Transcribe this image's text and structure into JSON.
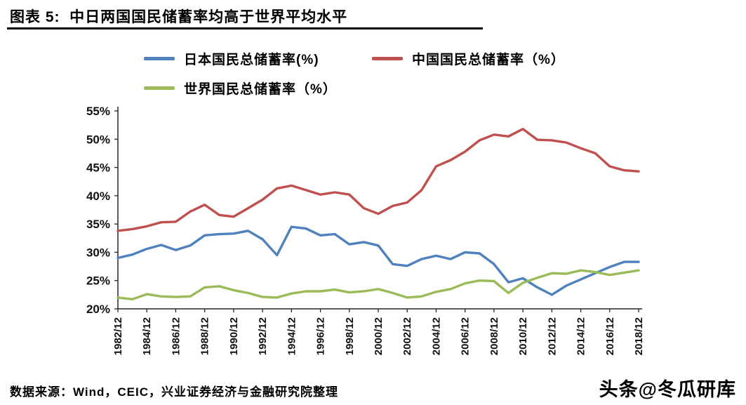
{
  "header": {
    "title": "图表 5:  中日两国国民储蓄率均高于世界平均水平"
  },
  "footer": {
    "source": "数据来源：Wind，CEIC，兴业证券经济与金融研究院整理",
    "watermark": "头条@冬瓜研库"
  },
  "chart_data": {
    "type": "line",
    "title": "中日两国国民储蓄率均高于世界平均水平",
    "legend_position": "top",
    "grid": false,
    "ylim": [
      20,
      55
    ],
    "y_tick_labels": [
      "20%",
      "25%",
      "30%",
      "35%",
      "40%",
      "45%",
      "50%",
      "55%"
    ],
    "x_tick_labels": [
      "1982/12",
      "1984/12",
      "1986/12",
      "1988/12",
      "1990/12",
      "1992/12",
      "1994/12",
      "1996/12",
      "1998/12",
      "2000/12",
      "2002/12",
      "2004/12",
      "2006/12",
      "2008/12",
      "2010/12",
      "2012/12",
      "2014/12",
      "2016/12",
      "2018/12"
    ],
    "years": [
      1982,
      1983,
      1984,
      1985,
      1986,
      1987,
      1988,
      1989,
      1990,
      1991,
      1992,
      1993,
      1994,
      1995,
      1996,
      1997,
      1998,
      1999,
      2000,
      2001,
      2002,
      2003,
      2004,
      2005,
      2006,
      2007,
      2008,
      2009,
      2010,
      2011,
      2012,
      2013,
      2014,
      2015,
      2016,
      2017,
      2018
    ],
    "series": [
      {
        "name": "日本国民总储蓄率(%)",
        "color": "#4F81BD",
        "values": [
          29.0,
          29.6,
          30.6,
          31.3,
          30.4,
          31.2,
          33.0,
          33.2,
          33.3,
          33.8,
          32.3,
          29.5,
          34.5,
          34.2,
          33.0,
          33.2,
          31.4,
          31.8,
          31.2,
          27.9,
          27.6,
          28.8,
          29.4,
          28.8,
          30.0,
          29.8,
          27.9,
          24.7,
          25.4,
          23.8,
          22.5,
          24.1,
          25.2,
          26.3,
          27.4,
          28.3,
          28.3
        ]
      },
      {
        "name": "中国国民总储蓄率（%）",
        "color": "#C0504D",
        "values": [
          33.8,
          34.1,
          34.6,
          35.3,
          35.4,
          37.2,
          38.4,
          36.6,
          36.3,
          37.8,
          39.3,
          41.3,
          41.8,
          41.0,
          40.2,
          40.6,
          40.2,
          37.8,
          36.8,
          38.2,
          38.8,
          41.0,
          45.2,
          46.3,
          47.8,
          49.8,
          50.8,
          50.5,
          51.8,
          49.9,
          49.8,
          49.4,
          48.4,
          47.5,
          45.2,
          44.5,
          44.3
        ]
      },
      {
        "name": "世界国民总储蓄率（%）",
        "color": "#9BBB59",
        "values": [
          22.0,
          21.7,
          22.6,
          22.2,
          22.1,
          22.2,
          23.8,
          24.0,
          23.3,
          22.8,
          22.1,
          22.0,
          22.7,
          23.1,
          23.1,
          23.4,
          22.9,
          23.1,
          23.5,
          22.8,
          22.0,
          22.2,
          23.0,
          23.5,
          24.5,
          25.0,
          24.9,
          22.8,
          24.6,
          25.5,
          26.3,
          26.2,
          26.8,
          26.5,
          26.0,
          26.4,
          26.8
        ]
      }
    ]
  }
}
